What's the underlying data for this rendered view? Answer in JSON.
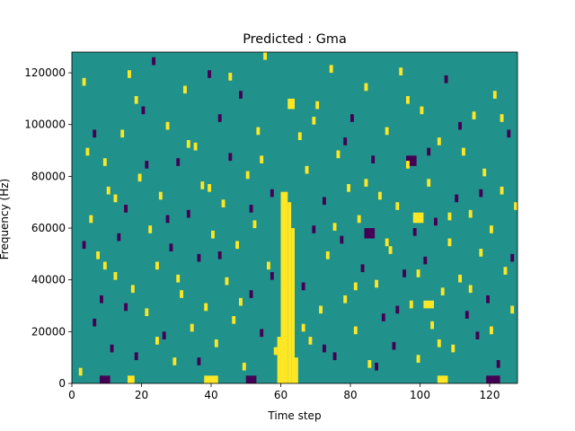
{
  "chart_data": {
    "type": "heatmap",
    "title": "Predicted : Gma",
    "xlabel": "Time step",
    "ylabel": "Frequency (Hz)",
    "xlim": [
      0,
      128
    ],
    "ylim": [
      0,
      128000
    ],
    "xticks": [
      0,
      20,
      40,
      60,
      80,
      100,
      120
    ],
    "xtick_labels": [
      "0",
      "20",
      "40",
      "60",
      "80",
      "100",
      "120"
    ],
    "yticks": [
      0,
      20000,
      40000,
      60000,
      80000,
      100000,
      120000
    ],
    "ytick_labels": [
      "0",
      "20000",
      "40000",
      "60000",
      "80000",
      "100000",
      "120000"
    ],
    "grid": false,
    "colormap": "viridis",
    "value_levels": [
      -1,
      0,
      1
    ],
    "colors": {
      "-1": "#440154",
      "0": "#21918c",
      "1": "#fde725"
    },
    "background_value": 0,
    "note_cells_format": "[time_step, frequency_bin, value] with frequency_bin of width 1000 Hz",
    "bands": [
      {
        "x_start": 59,
        "x_end": 60,
        "y_start": 0,
        "y_end": 18000,
        "value": 1
      },
      {
        "x_start": 60,
        "x_end": 62,
        "y_start": 0,
        "y_end": 74000,
        "value": 1
      },
      {
        "x_start": 62,
        "x_end": 63,
        "y_start": 0,
        "y_end": 70000,
        "value": 1
      },
      {
        "x_start": 63,
        "x_end": 64,
        "y_start": 0,
        "y_end": 60000,
        "value": 1
      },
      {
        "x_start": 64,
        "x_end": 65,
        "y_start": 0,
        "y_end": 10000,
        "value": 1
      },
      {
        "x_start": 16,
        "x_end": 18,
        "y_start": 0,
        "y_end": 3000,
        "value": 1
      },
      {
        "x_start": 38,
        "x_end": 42,
        "y_start": 0,
        "y_end": 3000,
        "value": 1
      },
      {
        "x_start": 8,
        "x_end": 11,
        "y_start": 0,
        "y_end": 3000,
        "value": -1
      },
      {
        "x_start": 50,
        "x_end": 53,
        "y_start": 0,
        "y_end": 3000,
        "value": -1
      },
      {
        "x_start": 105,
        "x_end": 108,
        "y_start": 0,
        "y_end": 3000,
        "value": 1
      },
      {
        "x_start": 119,
        "x_end": 123,
        "y_start": 0,
        "y_end": 3000,
        "value": -1
      },
      {
        "x_start": 98,
        "x_end": 101,
        "y_start": 62000,
        "y_end": 66000,
        "value": 1
      },
      {
        "x_start": 62,
        "x_end": 64,
        "y_start": 106000,
        "y_end": 110000,
        "value": 1
      },
      {
        "x_start": 84,
        "x_end": 87,
        "y_start": 56000,
        "y_end": 60000,
        "value": -1
      },
      {
        "x_start": 96,
        "x_end": 99,
        "y_start": 84000,
        "y_end": 88000,
        "value": -1
      },
      {
        "x_start": 101,
        "x_end": 104,
        "y_start": 29000,
        "y_end": 32000,
        "value": 1
      }
    ],
    "notes": [
      [
        2,
        3,
        1
      ],
      [
        3,
        115,
        1
      ],
      [
        4,
        88,
        1
      ],
      [
        5,
        62,
        1
      ],
      [
        6,
        22,
        -1
      ],
      [
        7,
        48,
        1
      ],
      [
        8,
        31,
        -1
      ],
      [
        9,
        84,
        1
      ],
      [
        10,
        73,
        1
      ],
      [
        11,
        12,
        -1
      ],
      [
        12,
        40,
        1
      ],
      [
        13,
        55,
        -1
      ],
      [
        14,
        95,
        1
      ],
      [
        15,
        66,
        -1
      ],
      [
        16,
        118,
        1
      ],
      [
        17,
        35,
        1
      ],
      [
        18,
        9,
        -1
      ],
      [
        19,
        78,
        1
      ],
      [
        20,
        104,
        -1
      ],
      [
        21,
        26,
        1
      ],
      [
        22,
        58,
        1
      ],
      [
        23,
        123,
        -1
      ],
      [
        24,
        44,
        1
      ],
      [
        25,
        71,
        1
      ],
      [
        26,
        17,
        -1
      ],
      [
        27,
        98,
        1
      ],
      [
        28,
        51,
        -1
      ],
      [
        29,
        7,
        1
      ],
      [
        30,
        84,
        -1
      ],
      [
        31,
        33,
        1
      ],
      [
        32,
        112,
        1
      ],
      [
        33,
        64,
        -1
      ],
      [
        34,
        20,
        1
      ],
      [
        35,
        90,
        1
      ],
      [
        36,
        47,
        -1
      ],
      [
        37,
        75,
        1
      ],
      [
        38,
        28,
        1
      ],
      [
        39,
        118,
        -1
      ],
      [
        40,
        56,
        1
      ],
      [
        41,
        14,
        1
      ],
      [
        42,
        101,
        -1
      ],
      [
        43,
        68,
        1
      ],
      [
        44,
        38,
        1
      ],
      [
        45,
        86,
        -1
      ],
      [
        46,
        23,
        1
      ],
      [
        47,
        52,
        1
      ],
      [
        48,
        110,
        -1
      ],
      [
        49,
        5,
        1
      ],
      [
        50,
        79,
        1
      ],
      [
        51,
        33,
        -1
      ],
      [
        52,
        60,
        1
      ],
      [
        53,
        96,
        1
      ],
      [
        54,
        18,
        -1
      ],
      [
        55,
        125,
        1
      ],
      [
        56,
        44,
        1
      ],
      [
        57,
        72,
        -1
      ],
      [
        58,
        11,
        1
      ],
      [
        65,
        94,
        1
      ],
      [
        66,
        36,
        -1
      ],
      [
        67,
        81,
        1
      ],
      [
        68,
        15,
        1
      ],
      [
        69,
        58,
        -1
      ],
      [
        70,
        106,
        1
      ],
      [
        71,
        27,
        1
      ],
      [
        72,
        69,
        -1
      ],
      [
        73,
        48,
        1
      ],
      [
        74,
        120,
        1
      ],
      [
        75,
        9,
        -1
      ],
      [
        76,
        87,
        1
      ],
      [
        77,
        54,
        -1
      ],
      [
        78,
        31,
        1
      ],
      [
        79,
        74,
        1
      ],
      [
        80,
        101,
        -1
      ],
      [
        81,
        19,
        1
      ],
      [
        82,
        62,
        1
      ],
      [
        83,
        43,
        -1
      ],
      [
        84,
        113,
        1
      ],
      [
        85,
        6,
        1
      ],
      [
        86,
        85,
        -1
      ],
      [
        87,
        37,
        1
      ],
      [
        88,
        71,
        1
      ],
      [
        89,
        24,
        -1
      ],
      [
        90,
        96,
        1
      ],
      [
        91,
        50,
        1
      ],
      [
        92,
        13,
        -1
      ],
      [
        93,
        67,
        1
      ],
      [
        94,
        119,
        1
      ],
      [
        95,
        41,
        -1
      ],
      [
        96,
        83,
        1
      ],
      [
        97,
        29,
        1
      ],
      [
        98,
        57,
        -1
      ],
      [
        99,
        8,
        1
      ],
      [
        100,
        104,
        1
      ],
      [
        101,
        46,
        -1
      ],
      [
        102,
        76,
        1
      ],
      [
        103,
        21,
        1
      ],
      [
        104,
        61,
        -1
      ],
      [
        105,
        92,
        1
      ],
      [
        106,
        34,
        1
      ],
      [
        107,
        116,
        -1
      ],
      [
        108,
        53,
        1
      ],
      [
        109,
        12,
        1
      ],
      [
        110,
        70,
        -1
      ],
      [
        111,
        39,
        1
      ],
      [
        112,
        88,
        1
      ],
      [
        113,
        25,
        -1
      ],
      [
        114,
        64,
        1
      ],
      [
        115,
        102,
        1
      ],
      [
        116,
        17,
        -1
      ],
      [
        117,
        49,
        1
      ],
      [
        118,
        80,
        1
      ],
      [
        119,
        31,
        -1
      ],
      [
        120,
        58,
        1
      ],
      [
        121,
        110,
        1
      ],
      [
        122,
        6,
        -1
      ],
      [
        123,
        73,
        1
      ],
      [
        124,
        42,
        1
      ],
      [
        125,
        95,
        -1
      ],
      [
        126,
        27,
        1
      ],
      [
        127,
        67,
        1
      ],
      [
        3,
        52,
        -1
      ],
      [
        6,
        95,
        -1
      ],
      [
        9,
        44,
        1
      ],
      [
        12,
        70,
        1
      ],
      [
        15,
        28,
        -1
      ],
      [
        18,
        108,
        1
      ],
      [
        21,
        83,
        -1
      ],
      [
        24,
        15,
        1
      ],
      [
        27,
        62,
        -1
      ],
      [
        30,
        39,
        1
      ],
      [
        33,
        91,
        1
      ],
      [
        36,
        7,
        -1
      ],
      [
        39,
        74,
        1
      ],
      [
        42,
        48,
        -1
      ],
      [
        45,
        117,
        1
      ],
      [
        48,
        30,
        1
      ],
      [
        51,
        66,
        -1
      ],
      [
        54,
        85,
        1
      ],
      [
        57,
        40,
        -1
      ],
      [
        66,
        20,
        1
      ],
      [
        69,
        100,
        1
      ],
      [
        72,
        12,
        -1
      ],
      [
        75,
        59,
        1
      ],
      [
        78,
        92,
        -1
      ],
      [
        81,
        36,
        1
      ],
      [
        84,
        76,
        1
      ],
      [
        87,
        5,
        -1
      ],
      [
        90,
        53,
        1
      ],
      [
        93,
        27,
        -1
      ],
      [
        96,
        108,
        1
      ],
      [
        99,
        41,
        1
      ],
      [
        102,
        88,
        -1
      ],
      [
        105,
        14,
        1
      ],
      [
        108,
        63,
        1
      ],
      [
        111,
        98,
        -1
      ],
      [
        114,
        35,
        1
      ],
      [
        117,
        72,
        -1
      ],
      [
        120,
        19,
        1
      ],
      [
        123,
        101,
        1
      ],
      [
        126,
        47,
        -1
      ]
    ]
  }
}
